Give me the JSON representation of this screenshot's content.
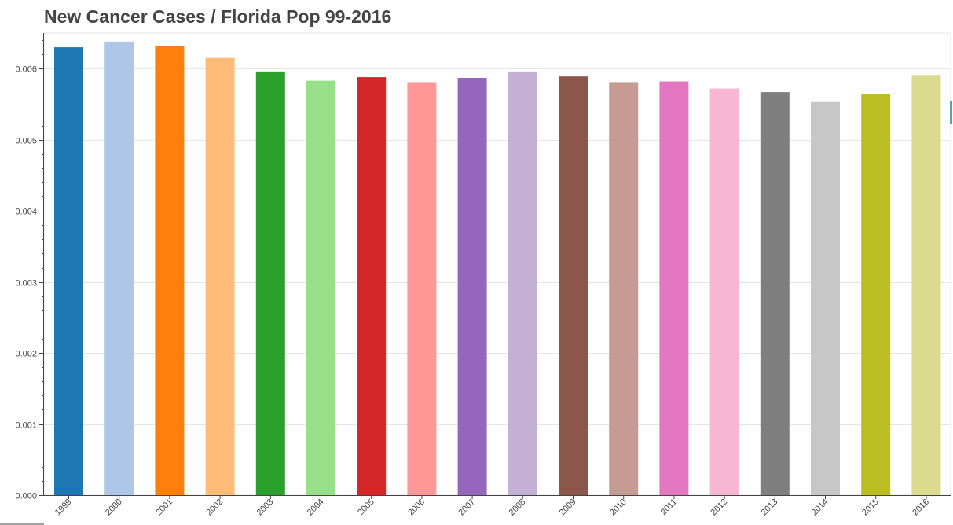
{
  "chart_data": {
    "type": "bar",
    "title": "New Cancer Cases / Florida Pop 99-2016",
    "xlabel": "",
    "ylabel": "",
    "ylim": [
      0,
      0.0065
    ],
    "yticks": [
      "0.000",
      "0.001",
      "0.002",
      "0.003",
      "0.004",
      "0.005",
      "0.006"
    ],
    "ytick_values": [
      0,
      0.001,
      0.002,
      0.003,
      0.004,
      0.005,
      0.006
    ],
    "grid": true,
    "categories": [
      "1999",
      "2000",
      "2001",
      "2002",
      "2003",
      "2004",
      "2005",
      "2006",
      "2007",
      "2008",
      "2009",
      "2010",
      "2011",
      "2012",
      "2013",
      "2014",
      "2015",
      "2016"
    ],
    "values": [
      0.0063,
      0.00638,
      0.00632,
      0.00615,
      0.00596,
      0.00583,
      0.00588,
      0.00581,
      0.00587,
      0.00596,
      0.00589,
      0.00581,
      0.00582,
      0.00572,
      0.00567,
      0.00553,
      0.00564,
      0.0059
    ],
    "colors": [
      "#1f77b4",
      "#aec7e8",
      "#ff7f0e",
      "#ffbb78",
      "#2ca02c",
      "#98df8a",
      "#d62728",
      "#ff9896",
      "#9467bd",
      "#c5b0d5",
      "#8c564b",
      "#c49c94",
      "#e377c2",
      "#f7b6d2",
      "#7f7f7f",
      "#c7c7c7",
      "#bcbd22",
      "#dbdb8d"
    ]
  }
}
